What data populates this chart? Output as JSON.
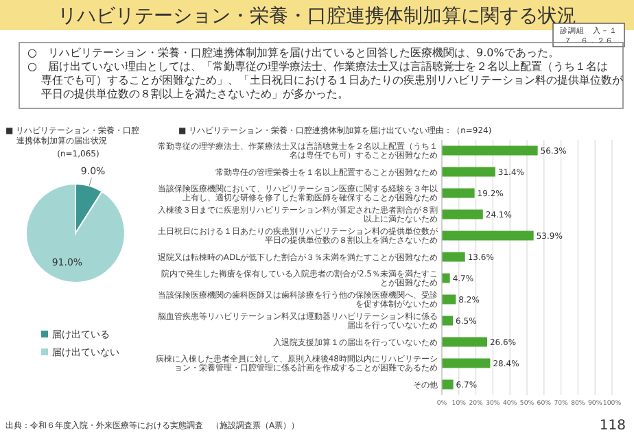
{
  "chart_data": [
    {
      "type": "pie",
      "title": "■ リハビリテーション・栄養・口腔連携体制加算の届出状況",
      "subtitle": "(n=1,065)",
      "categories": [
        "届け出ている",
        "届け出ていない"
      ],
      "values": [
        9.0,
        91.0
      ],
      "value_labels": [
        "9.0%",
        "91.0%"
      ],
      "colors": [
        "#3a9690",
        "#a3d6d3"
      ],
      "legend": "bottom",
      "annotations": [
        "リハビリテーション・栄養・口腔連携体制加算に関する状況",
        "診調組　入－１",
        "７．６．２６",
        "○　リハビリテーション・栄養・口腔連携体制加算を届け出ていると回答した医療機関は、9.0%であった。",
        "○　届け出ていない理由としては、「常勤専従の理学療法士、作業療法士又は言語聴覚士を２名以上配置（うち１名は専任でも可）することが困難なため」、「土日祝日における１日あたりの疾患別リハビリテーション料の提供単位数が平日の提供単位数の８割以上を満たさないため」が多かった。",
        "出典：令和６年度入院・外来医療等における実態調査　（施設調査票（A票））",
        "118"
      ]
    },
    {
      "type": "bar",
      "orientation": "horizontal",
      "title": "■ リハビリテーション・栄養・口腔連携体制加算を届け出ていない理由：（n=924)",
      "categories": [
        "常勤専従の理学療法士、作業療法士又は言語聴覚士を２名以上配置（うち１名は専任でも可）することが困難なため",
        "常勤専任の管理栄養士を１名以上配置することが困難なため",
        "当該保険医療機関において、リハビリテーション医療に関する経験を３年以上有し、適切な研修を修了した常勤医師を確保することが困難なため",
        "入棟後３日までに疾患別リハビリテーション料が算定された患者割合が８割以上に満たないため",
        "土日祝日における１日あたりの疾患別リハビリテーション料の提供単位数が平日の提供単位数の８割以上を満たさないため",
        "退院又は転棟時のADLが低下した割合が３％未満を満たすことが困難なため",
        "院内で発生した褥瘡を保有している入院患者の割合が2.5％未満を満たすことが困難なため",
        "当該保険医療機関の歯科医師又は歯科診療を行う他の保険医療機関へ、受診を促す体制がないため",
        "脳血管疾患等リハビリテーション料又は運動器リハビリテーション料に係る届出を行っていないため",
        "入退院支援加算１の届出を行っていないため",
        "病棟に入棟した患者全員に対して、原則入棟後48時間以内にリハビリテーション・栄養管理・口腔管理に係る計画を作成することが困難であるため",
        "その他"
      ],
      "values": [
        56.3,
        31.4,
        19.2,
        24.1,
        53.9,
        13.6,
        4.7,
        8.2,
        6.5,
        26.6,
        28.4,
        6.7
      ],
      "value_labels": [
        "56.3%",
        "31.4%",
        "19.2%",
        "24.1%",
        "53.9%",
        "13.6%",
        "4.7%",
        "8.2%",
        "6.5%",
        "26.6%",
        "28.4%",
        "6.7%"
      ],
      "color": "#4aa832",
      "xlim": [
        0,
        100
      ],
      "xticks": [
        {
          "value": 0,
          "label": "0%"
        },
        {
          "value": 10,
          "label": "10%"
        },
        {
          "value": 20,
          "label": "20%"
        },
        {
          "value": 30,
          "label": "30%"
        },
        {
          "value": 40,
          "label": "40%"
        },
        {
          "value": 50,
          "label": "50%"
        },
        {
          "value": 60,
          "label": "60%"
        },
        {
          "value": 70,
          "label": "70%"
        },
        {
          "value": 80,
          "label": "80%"
        },
        {
          "value": 90,
          "label": "90%"
        },
        {
          "value": 100,
          "label": "100%"
        }
      ],
      "grid": "x"
    }
  ]
}
